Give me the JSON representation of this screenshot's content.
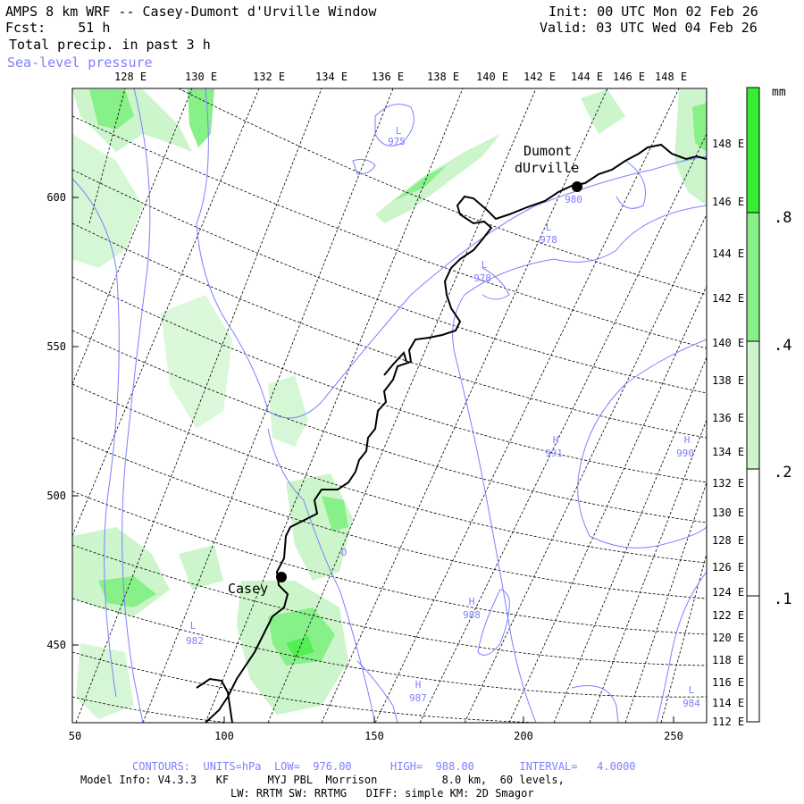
{
  "header": {
    "title": "AMPS 8 km WRF -- Casey-Dumont d'Urville Window",
    "fcst": "Fcst:    51 h",
    "field": "Total precip. in past 3 h",
    "overlay": "Sea-level pressure",
    "init": "Init: 00 UTC Mon 02 Feb 26",
    "valid": "Valid: 03 UTC Wed 04 Feb 26"
  },
  "map": {
    "top_lon_labels": [
      "128 E",
      "130 E",
      "132 E",
      "134 E",
      "136 E",
      "138 E",
      "140 E",
      "142 E",
      "144 E",
      "146 E",
      "148 E"
    ],
    "right_lon_labels": [
      "148 E",
      "146 E",
      "144 E",
      "142 E",
      "140 E",
      "138 E",
      "136 E",
      "134 E",
      "132 E",
      "130 E",
      "128 E",
      "126 E",
      "124 E",
      "122 E",
      "120 E",
      "118 E",
      "116 E",
      "114 E",
      "112 E"
    ],
    "x_ticks": [
      "50",
      "100",
      "150",
      "200",
      "250"
    ],
    "y_ticks": [
      "600",
      "550",
      "500",
      "450"
    ],
    "stations": [
      {
        "name_line1": "Dumont",
        "name_line2": "dUrville"
      },
      {
        "name_line1": "Casey",
        "name_line2": ""
      }
    ],
    "pressure_labels": [
      {
        "type": "L",
        "value": "975"
      },
      {
        "type": "L",
        "value": "980"
      },
      {
        "type": "L",
        "value": "978"
      },
      {
        "type": "L",
        "value": "978"
      },
      {
        "type": "H",
        "value": "991"
      },
      {
        "type": "H",
        "value": "990"
      },
      {
        "type": "H",
        "value": "988"
      },
      {
        "type": "L",
        "value": "982"
      },
      {
        "type": "H",
        "value": "987"
      },
      {
        "type": "L",
        "value": "984"
      },
      {
        "type": "",
        "value": "O"
      }
    ]
  },
  "colorbar": {
    "unit": "mm",
    "labels": [
      ".8",
      ".4",
      ".2",
      ".1"
    ],
    "colors": [
      "#33ee33",
      "#88f088",
      "#ccf5cc",
      "#ffffff"
    ]
  },
  "footer": {
    "contours": "CONTOURS:  UNITS=hPa  LOW=  976.00      HIGH=  988.00       INTERVAL=   4.0000",
    "model_line": "Model Info: V4.3.3   KF      MYJ PBL  Morrison          8.0 km,  60 levels,",
    "phys_line": "LW: RRTM SW: RRTMG   DIFF: simple KM: 2D Smagor"
  },
  "colors": {
    "contour": "#7f7fff",
    "coast": "#000000",
    "precip_light": "#ccf5cc",
    "precip_mid": "#88f088",
    "precip_heavy": "#33ee33"
  }
}
